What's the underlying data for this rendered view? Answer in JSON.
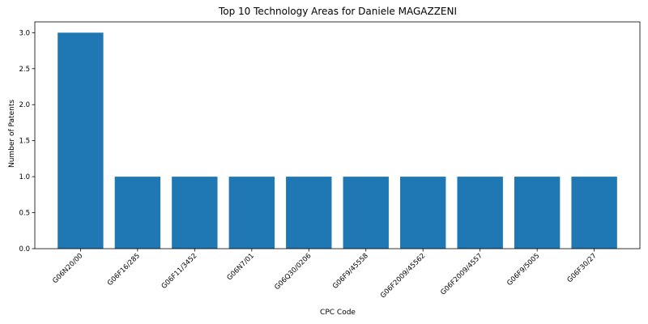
{
  "chart_data": {
    "type": "bar",
    "title": "Top 10 Technology Areas for Daniele MAGAZZENI",
    "xlabel": "CPC Code",
    "ylabel": "Number of Patents",
    "categories": [
      "G06N20/00",
      "G06F16/285",
      "G06F11/3452",
      "G06N7/01",
      "G06Q30/0206",
      "G06F9/45558",
      "G06F2009/45562",
      "G06F2009/4557",
      "G06F9/5005",
      "G06F30/27"
    ],
    "values": [
      3,
      1,
      1,
      1,
      1,
      1,
      1,
      1,
      1,
      1
    ],
    "ylim": [
      0,
      3.15
    ],
    "yticks": [
      "0.0",
      "0.5",
      "1.0",
      "1.5",
      "2.0",
      "2.5",
      "3.0"
    ],
    "bar_color": "#1f77b4",
    "grid": false
  }
}
